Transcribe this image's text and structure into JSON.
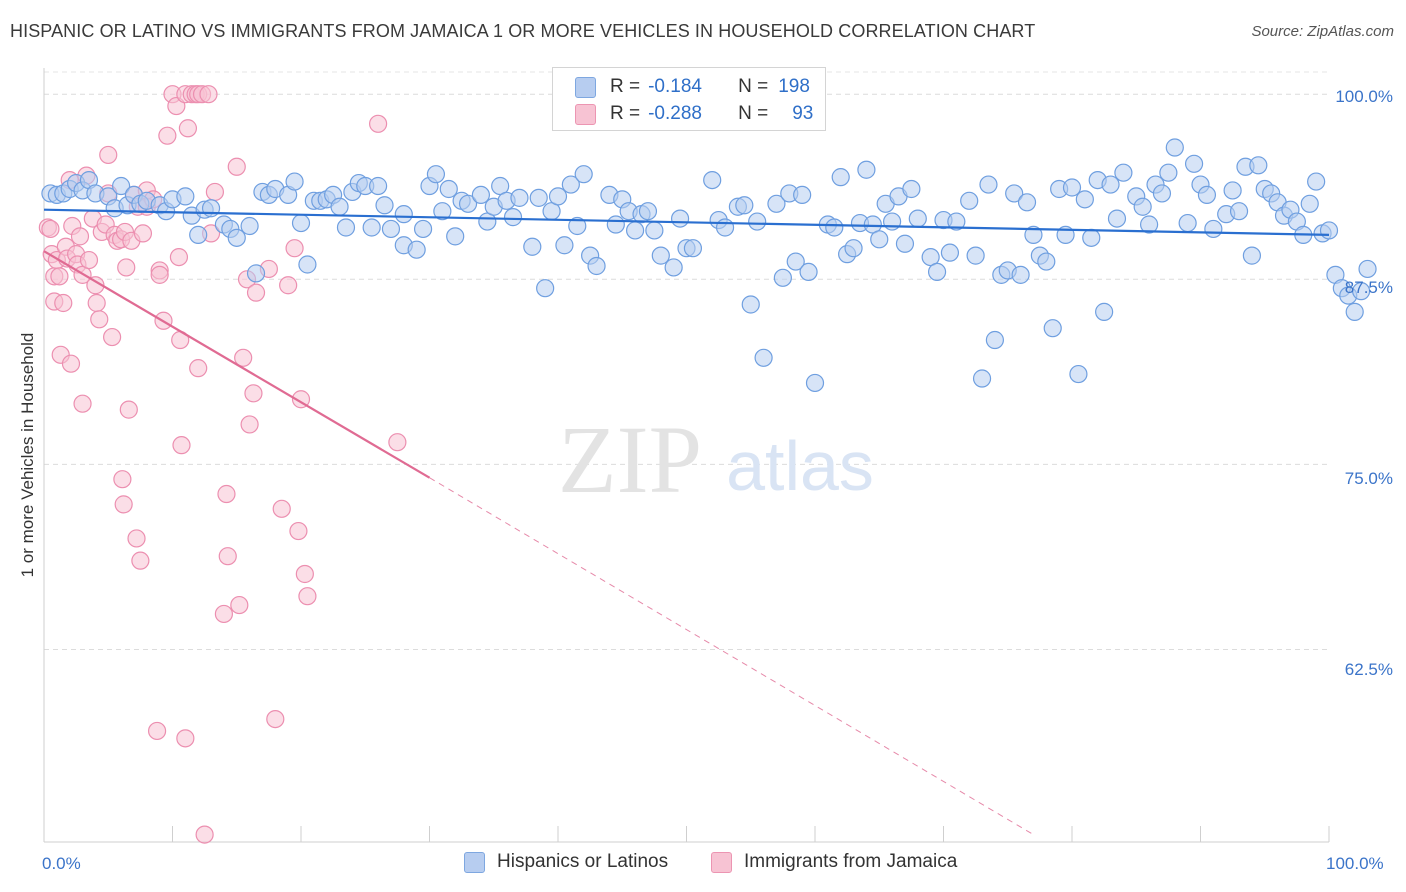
{
  "title": "HISPANIC OR LATINO VS IMMIGRANTS FROM JAMAICA 1 OR MORE VEHICLES IN HOUSEHOLD CORRELATION CHART",
  "source": "Source: ZipAtlas.com",
  "legend": {
    "row1": {
      "r_label": "R =",
      "r_value": "-0.184",
      "n_label": "N =",
      "n_value": "198"
    },
    "row2": {
      "r_label": "R =",
      "r_value": "-0.288",
      "n_label": "N =",
      "n_value": "93"
    }
  },
  "bottom_legend": [
    "Hispanics or Latinos",
    "Immigrants from Jamaica"
  ],
  "colors": {
    "blue_fill": "#b7cdf0",
    "blue_stroke": "#6f9fe0",
    "blue_line": "#2a6fd0",
    "pink_fill": "#f7c3d3",
    "pink_stroke": "#ec8fb0",
    "pink_line": "#e06b93"
  },
  "chart_data": {
    "type": "scatter",
    "title": "HISPANIC OR LATINO VS IMMIGRANTS FROM JAMAICA 1 OR MORE VEHICLES IN HOUSEHOLD CORRELATION CHART",
    "xlabel": "",
    "ylabel": "1 or more Vehicles in Household",
    "xlim": [
      0,
      100
    ],
    "ylim": [
      49.5,
      101.5
    ],
    "x_tick_labels": [
      "0.0%",
      "100.0%"
    ],
    "y_ticks": [
      100.0,
      87.5,
      75.0,
      62.5
    ],
    "y_tick_labels": [
      "100.0%",
      "87.5%",
      "75.0%",
      "62.5%"
    ],
    "grid": true,
    "legend_position": "top-center",
    "series": [
      {
        "name": "Hispanics or Latinos",
        "r": -0.184,
        "n": 198,
        "trend": {
          "x": [
            0,
            100
          ],
          "y": [
            92.2,
            90.5
          ]
        },
        "points": [
          [
            0.5,
            93.3
          ],
          [
            1,
            93.2
          ],
          [
            1.5,
            93.3
          ],
          [
            2,
            93.6
          ],
          [
            2.5,
            94
          ],
          [
            3,
            93.5
          ],
          [
            3.5,
            94.2
          ],
          [
            4,
            93.3
          ],
          [
            5,
            93.1
          ],
          [
            5.5,
            92.3
          ],
          [
            6,
            93.8
          ],
          [
            6.5,
            92.5
          ],
          [
            7,
            93.2
          ],
          [
            7.5,
            92.6
          ],
          [
            8,
            92.8
          ],
          [
            9,
            92.5
          ],
          [
            9.5,
            92.1
          ],
          [
            10,
            92.9
          ],
          [
            11,
            93.1
          ],
          [
            11.5,
            91.8
          ],
          [
            12,
            90.5
          ],
          [
            12.5,
            92.2
          ],
          [
            13,
            92.3
          ],
          [
            14,
            91.2
          ],
          [
            14.5,
            90.9
          ],
          [
            15,
            90.3
          ],
          [
            16,
            91.1
          ],
          [
            16.5,
            87.9
          ],
          [
            17,
            93.4
          ],
          [
            17.5,
            93.2
          ],
          [
            18,
            93.6
          ],
          [
            19,
            93.2
          ],
          [
            19.5,
            94.1
          ],
          [
            20,
            91.3
          ],
          [
            20.5,
            88.5
          ],
          [
            21,
            92.8
          ],
          [
            21.5,
            92.8
          ],
          [
            22,
            92.9
          ],
          [
            22.5,
            93.2
          ],
          [
            23,
            92.4
          ],
          [
            24,
            93.4
          ],
          [
            24.5,
            94
          ],
          [
            25,
            93.8
          ],
          [
            26,
            93.8
          ],
          [
            23.5,
            91
          ],
          [
            25.5,
            91
          ],
          [
            26.5,
            92.5
          ],
          [
            27,
            90.9
          ],
          [
            28,
            91.9
          ],
          [
            28,
            89.8
          ],
          [
            29,
            89.5
          ],
          [
            29.5,
            90.9
          ],
          [
            30,
            93.8
          ],
          [
            30.5,
            94.6
          ],
          [
            31,
            92.1
          ],
          [
            31.5,
            93.6
          ],
          [
            32,
            90.4
          ],
          [
            32.5,
            92.8
          ],
          [
            33,
            92.6
          ],
          [
            34,
            93.2
          ],
          [
            34.5,
            91.4
          ],
          [
            35,
            92.4
          ],
          [
            35.5,
            93.8
          ],
          [
            36,
            92.8
          ],
          [
            36.5,
            91.7
          ],
          [
            37,
            93
          ],
          [
            38,
            89.7
          ],
          [
            38.5,
            93
          ],
          [
            39,
            86.9
          ],
          [
            39.5,
            92.1
          ],
          [
            40,
            93.1
          ],
          [
            40.5,
            89.8
          ],
          [
            41,
            93.9
          ],
          [
            41.5,
            91.1
          ],
          [
            42,
            94.6
          ],
          [
            42.5,
            89.1
          ],
          [
            43,
            88.4
          ],
          [
            44,
            93.2
          ],
          [
            44.5,
            91.2
          ],
          [
            45,
            92.9
          ],
          [
            45.5,
            92.1
          ],
          [
            46,
            90.8
          ],
          [
            46.5,
            91.9
          ],
          [
            47,
            92.1
          ],
          [
            47.5,
            90.8
          ],
          [
            48,
            89.1
          ],
          [
            49,
            88.3
          ],
          [
            49.5,
            91.6
          ],
          [
            50,
            89.6
          ],
          [
            50.5,
            89.6
          ],
          [
            52,
            94.2
          ],
          [
            52.5,
            91.5
          ],
          [
            53,
            91
          ],
          [
            54,
            92.4
          ],
          [
            54.5,
            92.5
          ],
          [
            55,
            85.8
          ],
          [
            55.5,
            91.4
          ],
          [
            56,
            82.2
          ],
          [
            57,
            92.6
          ],
          [
            57.5,
            87.6
          ],
          [
            58,
            93.3
          ],
          [
            58.5,
            88.7
          ],
          [
            59,
            93.2
          ],
          [
            59.5,
            88
          ],
          [
            60,
            80.5
          ],
          [
            61,
            91.2
          ],
          [
            61.5,
            91
          ],
          [
            62,
            94.4
          ],
          [
            62.5,
            89.2
          ],
          [
            63,
            89.6
          ],
          [
            63.5,
            91.3
          ],
          [
            64,
            94.9
          ],
          [
            64.5,
            91.2
          ],
          [
            65,
            90.2
          ],
          [
            65.5,
            92.6
          ],
          [
            66,
            91.4
          ],
          [
            66.5,
            93.1
          ],
          [
            67,
            89.9
          ],
          [
            67.5,
            93.6
          ],
          [
            68,
            91.6
          ],
          [
            69,
            89
          ],
          [
            69.5,
            88
          ],
          [
            70,
            91.5
          ],
          [
            70.5,
            89.3
          ],
          [
            71,
            91.4
          ],
          [
            72,
            92.8
          ],
          [
            72.5,
            89.1
          ],
          [
            73,
            80.8
          ],
          [
            73.5,
            93.9
          ],
          [
            74,
            83.4
          ],
          [
            74.5,
            87.8
          ],
          [
            75,
            88.1
          ],
          [
            75.5,
            93.3
          ],
          [
            76,
            87.8
          ],
          [
            76.5,
            92.7
          ],
          [
            77,
            90.5
          ],
          [
            77.5,
            89.1
          ],
          [
            78,
            88.7
          ],
          [
            78.5,
            84.2
          ],
          [
            79,
            93.6
          ],
          [
            79.5,
            90.5
          ],
          [
            80,
            93.7
          ],
          [
            80.5,
            81.1
          ],
          [
            81,
            92.9
          ],
          [
            81.5,
            90.3
          ],
          [
            82,
            94.2
          ],
          [
            82.5,
            85.3
          ],
          [
            83,
            93.9
          ],
          [
            83.5,
            91.6
          ],
          [
            84,
            94.7
          ],
          [
            85,
            93.1
          ],
          [
            85.5,
            92.4
          ],
          [
            86,
            91.2
          ],
          [
            86.5,
            93.9
          ],
          [
            87,
            93.3
          ],
          [
            87.5,
            94.7
          ],
          [
            88,
            96.4
          ],
          [
            89,
            91.3
          ],
          [
            89.5,
            95.3
          ],
          [
            90,
            93.9
          ],
          [
            90.5,
            93.2
          ],
          [
            91,
            90.9
          ],
          [
            92,
            91.9
          ],
          [
            92.5,
            93.5
          ],
          [
            93,
            92.1
          ],
          [
            93.5,
            95.1
          ],
          [
            94,
            89.1
          ],
          [
            94.5,
            95.2
          ],
          [
            95,
            93.6
          ],
          [
            95.5,
            93.3
          ],
          [
            96,
            92.7
          ],
          [
            96.5,
            91.8
          ],
          [
            97,
            92.2
          ],
          [
            97.5,
            91.4
          ],
          [
            98,
            90.5
          ],
          [
            98.5,
            92.6
          ],
          [
            99,
            94.1
          ],
          [
            99.5,
            90.6
          ],
          [
            100,
            90.8
          ],
          [
            100.5,
            87.8
          ],
          [
            101,
            86.9
          ],
          [
            101.5,
            86.4
          ],
          [
            102,
            85.3
          ],
          [
            102.5,
            86.7
          ],
          [
            103,
            88.2
          ]
        ]
      },
      {
        "name": "Immigrants from Jamaica",
        "r": -0.288,
        "n": 93,
        "trend": {
          "x": [
            0,
            30
          ],
          "y": [
            89.4,
            74.1
          ]
        },
        "trend_dashed": {
          "x": [
            30,
            77
          ],
          "y": [
            74.1,
            50
          ]
        },
        "points": [
          [
            0.3,
            91
          ],
          [
            0.5,
            90.9
          ],
          [
            0.6,
            89.2
          ],
          [
            0.8,
            87.7
          ],
          [
            0.8,
            86
          ],
          [
            1,
            88.8
          ],
          [
            1.2,
            87.7
          ],
          [
            1.3,
            82.4
          ],
          [
            1.5,
            85.9
          ],
          [
            1.7,
            89.7
          ],
          [
            1.8,
            88.9
          ],
          [
            2,
            94.2
          ],
          [
            2.1,
            81.8
          ],
          [
            2.2,
            91.1
          ],
          [
            2.5,
            89.2
          ],
          [
            2.6,
            88.5
          ],
          [
            2.8,
            90.4
          ],
          [
            3,
            87.8
          ],
          [
            3,
            79.1
          ],
          [
            3.3,
            94.5
          ],
          [
            3.5,
            88.8
          ],
          [
            3.8,
            91.6
          ],
          [
            4,
            87.1
          ],
          [
            4.1,
            85.9
          ],
          [
            4.3,
            84.8
          ],
          [
            4.5,
            90.7
          ],
          [
            4.8,
            91.2
          ],
          [
            5,
            95.9
          ],
          [
            5,
            93.3
          ],
          [
            5.3,
            83.6
          ],
          [
            5.5,
            90.5
          ],
          [
            5.7,
            90.1
          ],
          [
            6,
            90.2
          ],
          [
            6.1,
            74
          ],
          [
            6.2,
            72.3
          ],
          [
            6.3,
            90.7
          ],
          [
            6.4,
            88.3
          ],
          [
            6.6,
            78.7
          ],
          [
            6.8,
            90.1
          ],
          [
            7,
            93.2
          ],
          [
            7.2,
            70
          ],
          [
            7.3,
            92.4
          ],
          [
            7.5,
            68.5
          ],
          [
            7.7,
            90.6
          ],
          [
            8,
            92.4
          ],
          [
            8,
            93.5
          ],
          [
            8.5,
            92.9
          ],
          [
            8.8,
            57
          ],
          [
            9,
            88.1
          ],
          [
            9,
            87.8
          ],
          [
            9.3,
            84.7
          ],
          [
            9.6,
            97.2
          ],
          [
            10,
            100
          ],
          [
            10.3,
            99.2
          ],
          [
            10.5,
            89
          ],
          [
            10.6,
            83.4
          ],
          [
            10.7,
            76.3
          ],
          [
            11,
            100
          ],
          [
            11,
            56.5
          ],
          [
            11.2,
            97.7
          ],
          [
            11.5,
            100
          ],
          [
            11.8,
            100
          ],
          [
            12,
            100
          ],
          [
            12,
            81.5
          ],
          [
            12.3,
            100
          ],
          [
            12.5,
            50
          ],
          [
            12.8,
            100
          ],
          [
            13,
            90.6
          ],
          [
            13.3,
            93.4
          ],
          [
            14,
            64.9
          ],
          [
            14.2,
            73
          ],
          [
            14.3,
            68.8
          ],
          [
            15,
            95.1
          ],
          [
            15.2,
            65.5
          ],
          [
            15.5,
            82.2
          ],
          [
            15.8,
            87.5
          ],
          [
            16,
            77.7
          ],
          [
            16.3,
            79.8
          ],
          [
            16.5,
            86.6
          ],
          [
            17.5,
            88.2
          ],
          [
            18,
            57.8
          ],
          [
            18.5,
            72
          ],
          [
            19,
            87.1
          ],
          [
            19.5,
            89.6
          ],
          [
            19.8,
            70.5
          ],
          [
            20,
            79.4
          ],
          [
            20.3,
            67.6
          ],
          [
            20.5,
            66.1
          ],
          [
            26,
            98
          ],
          [
            27.5,
            76.5
          ]
        ]
      }
    ]
  }
}
